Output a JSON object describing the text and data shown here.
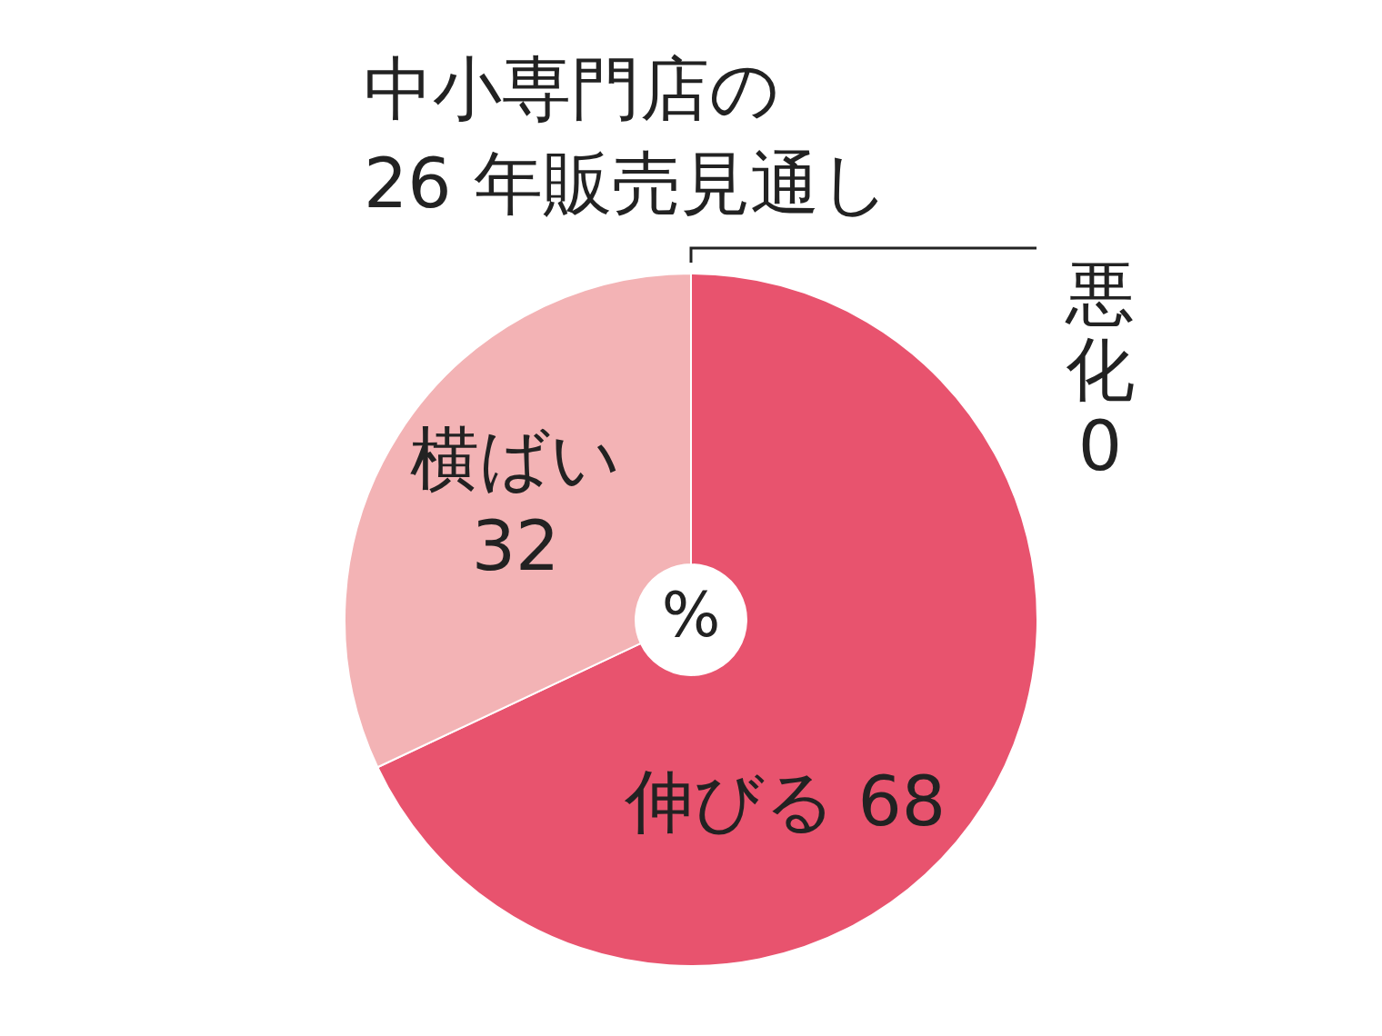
{
  "chart_data": {
    "type": "donut",
    "title": "中小専門店の\n26 年販売見通し",
    "categories": [
      "伸びる",
      "横ばい",
      "悪化"
    ],
    "values": [
      68,
      32,
      0
    ],
    "colors": [
      "#e8536e",
      "#f3b3b5",
      "#e8536e"
    ],
    "value_labels": [
      "68",
      "32",
      "0"
    ],
    "annotations": [
      "%"
    ]
  }
}
